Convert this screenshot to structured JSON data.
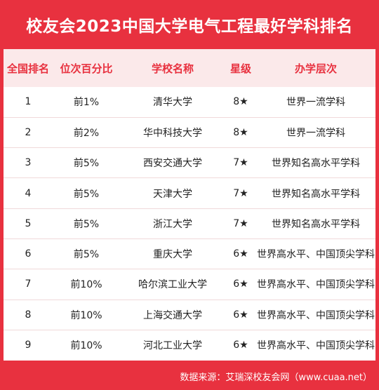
{
  "title": "校友会2023中国大学电气工程最好学科排名",
  "headers": [
    "全国排名",
    "位次百分比",
    "学校名称",
    "星级",
    "办学层次"
  ],
  "rows": [
    {
      "rank": "1",
      "percentile": "前1%",
      "school": "清华大学",
      "stars": "8★",
      "level": "世界一流学科"
    },
    {
      "rank": "2",
      "percentile": "前2%",
      "school": "华中科技大学",
      "stars": "8★",
      "level": "世界一流学科"
    },
    {
      "rank": "3",
      "percentile": "前5%",
      "school": "西安交通大学",
      "stars": "7★",
      "level": "世界知名高水平学科"
    },
    {
      "rank": "4",
      "percentile": "前5%",
      "school": "天津大学",
      "stars": "7★",
      "level": "世界知名高水平学科"
    },
    {
      "rank": "5",
      "percentile": "前5%",
      "school": "浙江大学",
      "stars": "7★",
      "level": "世界知名高水平学科"
    },
    {
      "rank": "6",
      "percentile": "前5%",
      "school": "重庆大学",
      "stars": "6★",
      "level": "世界高水平、中国顶尖学科"
    },
    {
      "rank": "7",
      "percentile": "前10%",
      "school": "哈尔滨工业大学",
      "stars": "6★",
      "level": "世界高水平、中国顶尖学科"
    },
    {
      "rank": "8",
      "percentile": "前10%",
      "school": "上海交通大学",
      "stars": "6★",
      "level": "世界高水平、中国顶尖学科"
    },
    {
      "rank": "9",
      "percentile": "前10%",
      "school": "河北工业大学",
      "stars": "6★",
      "level": "世界高水平、中国顶尖学科"
    }
  ],
  "footer": "数据来源：艾瑞深校友会网（www.cuaa.net）",
  "colors": {
    "accent": "#e8313f",
    "header_bg": "#fbe9ea"
  }
}
